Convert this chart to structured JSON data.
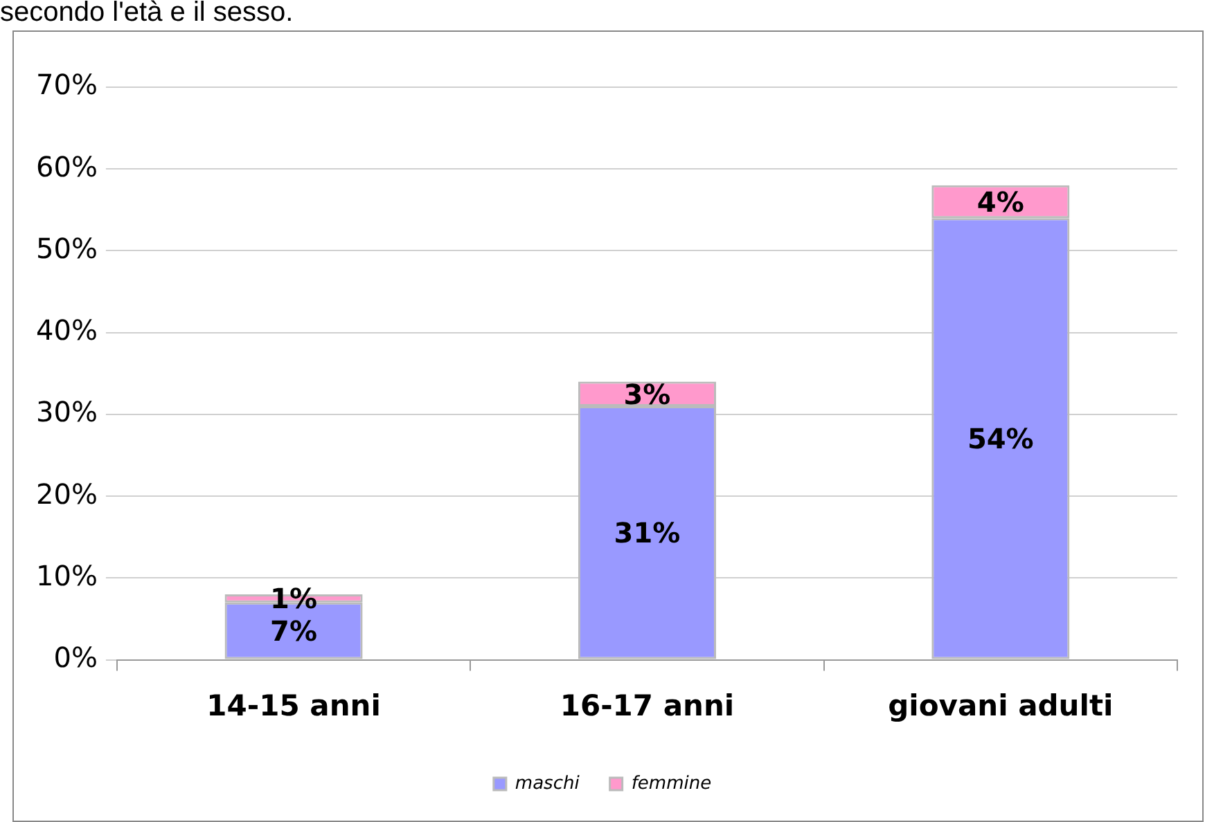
{
  "chart_data": {
    "type": "bar",
    "stacked": true,
    "annotations": [
      "secondo l'età e il sesso."
    ],
    "categories": [
      "14-15 anni",
      "16-17 anni",
      "giovani adulti"
    ],
    "series": [
      {
        "name": "maschi",
        "color": "#9999ff",
        "values": [
          7,
          31,
          54
        ],
        "value_labels": [
          "7%",
          "31%",
          "54%"
        ]
      },
      {
        "name": "femmine",
        "color": "#ff99cc",
        "values": [
          1,
          3,
          4
        ],
        "value_labels": [
          "1%",
          "3%",
          "4%"
        ]
      }
    ],
    "ylim": [
      0,
      70
    ],
    "yticks": [
      {
        "value": 0,
        "label": "0%"
      },
      {
        "value": 10,
        "label": "10%"
      },
      {
        "value": 20,
        "label": "20%"
      },
      {
        "value": 30,
        "label": "30%"
      },
      {
        "value": 40,
        "label": "40%"
      },
      {
        "value": 50,
        "label": "50%"
      },
      {
        "value": 60,
        "label": "60%"
      },
      {
        "value": 70,
        "label": "70%"
      }
    ],
    "grid": "y",
    "legend": "bottom"
  }
}
